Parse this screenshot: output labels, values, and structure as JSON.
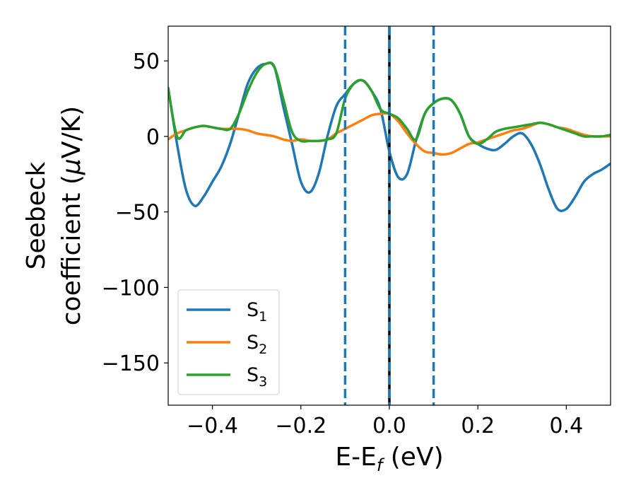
{
  "chart_data": {
    "type": "line",
    "xlabel": {
      "main": "E-E",
      "sub": "f",
      "unit": " (eV)"
    },
    "ylabel": {
      "line1": "Seebeck",
      "line2": "coefficient  (",
      "mu": "μ",
      "line2_end": "V/K)"
    },
    "xlim": [
      -0.5,
      0.5
    ],
    "ylim": [
      -178,
      73
    ],
    "xticks": [
      -0.4,
      -0.2,
      0.0,
      0.2,
      0.4
    ],
    "xtick_labels": [
      "−0.4",
      "−0.2",
      "0.0",
      "0.2",
      "0.4"
    ],
    "yticks": [
      50,
      0,
      -50,
      -100,
      -150
    ],
    "ytick_labels": [
      "50",
      "0",
      "−50",
      "−100",
      "−150"
    ],
    "grid": false,
    "legend_placement": "lower-left",
    "vlines": [
      {
        "x": -0.1,
        "style": "dashed",
        "color": "#1f77b4"
      },
      {
        "x": 0.0,
        "style": "solid",
        "color": "#000000"
      },
      {
        "x": 0.0,
        "style": "dashed",
        "color": "#1f77b4"
      },
      {
        "x": 0.1,
        "style": "dashed",
        "color": "#1f77b4"
      }
    ],
    "series": [
      {
        "name": "S",
        "sub": "1",
        "color": "#1f77b4",
        "x": [
          -0.5,
          -0.48,
          -0.46,
          -0.44,
          -0.42,
          -0.4,
          -0.38,
          -0.36,
          -0.34,
          -0.32,
          -0.3,
          -0.28,
          -0.26,
          -0.24,
          -0.22,
          -0.2,
          -0.18,
          -0.16,
          -0.14,
          -0.12,
          -0.1,
          -0.08,
          -0.06,
          -0.04,
          -0.02,
          0.0,
          0.02,
          0.04,
          0.06,
          0.08,
          0.1,
          0.12,
          0.14,
          0.16,
          0.18,
          0.2,
          0.22,
          0.24,
          0.26,
          0.28,
          0.3,
          0.32,
          0.34,
          0.36,
          0.38,
          0.4,
          0.42,
          0.44,
          0.46,
          0.48,
          0.5
        ],
        "y": [
          32,
          -5,
          -35,
          -46,
          -40,
          -30,
          -20,
          -5,
          15,
          35,
          45,
          48,
          46,
          20,
          -5,
          -30,
          -37,
          -25,
          0,
          20,
          28,
          35,
          37,
          30,
          18,
          -10,
          -27,
          -25,
          -3,
          15,
          22,
          25,
          24,
          15,
          0,
          -5,
          -8,
          -9,
          -5,
          0,
          2,
          -5,
          -18,
          -35,
          -48,
          -48,
          -40,
          -30,
          -25,
          -22,
          -18
        ]
      },
      {
        "name": "S",
        "sub": "2",
        "color": "#ff7f0e",
        "x": [
          -0.5,
          -0.48,
          -0.46,
          -0.44,
          -0.42,
          -0.4,
          -0.38,
          -0.36,
          -0.34,
          -0.32,
          -0.3,
          -0.28,
          -0.26,
          -0.24,
          -0.22,
          -0.2,
          -0.18,
          -0.16,
          -0.14,
          -0.12,
          -0.1,
          -0.08,
          -0.06,
          -0.04,
          -0.02,
          0.0,
          0.02,
          0.04,
          0.06,
          0.08,
          0.1,
          0.12,
          0.14,
          0.16,
          0.18,
          0.2,
          0.22,
          0.24,
          0.26,
          0.28,
          0.3,
          0.32,
          0.34,
          0.36,
          0.38,
          0.4,
          0.42,
          0.44,
          0.46,
          0.48,
          0.5
        ],
        "y": [
          -2,
          2,
          4,
          6,
          7,
          6,
          5,
          5,
          5,
          4,
          2,
          1,
          0,
          -2,
          -3,
          -2,
          -3,
          -3,
          -2,
          2,
          5,
          8,
          11,
          14,
          15,
          15,
          10,
          2,
          -5,
          -10,
          -11,
          -12,
          -11,
          -8,
          -5,
          -4,
          -2,
          0,
          2,
          4,
          5,
          7,
          9,
          8,
          6,
          5,
          3,
          1,
          0,
          0,
          0
        ]
      },
      {
        "name": "S",
        "sub": "3",
        "color": "#2ca02c",
        "x": [
          -0.5,
          -0.48,
          -0.46,
          -0.44,
          -0.42,
          -0.4,
          -0.38,
          -0.36,
          -0.34,
          -0.32,
          -0.3,
          -0.28,
          -0.26,
          -0.24,
          -0.22,
          -0.2,
          -0.18,
          -0.16,
          -0.14,
          -0.12,
          -0.1,
          -0.08,
          -0.06,
          -0.04,
          -0.02,
          0.0,
          0.02,
          0.04,
          0.06,
          0.08,
          0.1,
          0.12,
          0.14,
          0.16,
          0.18,
          0.2,
          0.22,
          0.24,
          0.26,
          0.28,
          0.3,
          0.32,
          0.34,
          0.36,
          0.38,
          0.4,
          0.42,
          0.44,
          0.46,
          0.48,
          0.5
        ],
        "y": [
          32,
          0,
          4,
          6,
          7,
          6,
          5,
          5,
          15,
          30,
          42,
          48,
          46,
          25,
          3,
          -3,
          -3,
          -3,
          -2,
          2,
          25,
          35,
          37,
          30,
          18,
          15,
          12,
          5,
          -2,
          15,
          22,
          25,
          24,
          15,
          0,
          -5,
          -2,
          3,
          5,
          6,
          7,
          8,
          9,
          8,
          6,
          4,
          2,
          0,
          0,
          0,
          1
        ]
      }
    ]
  }
}
